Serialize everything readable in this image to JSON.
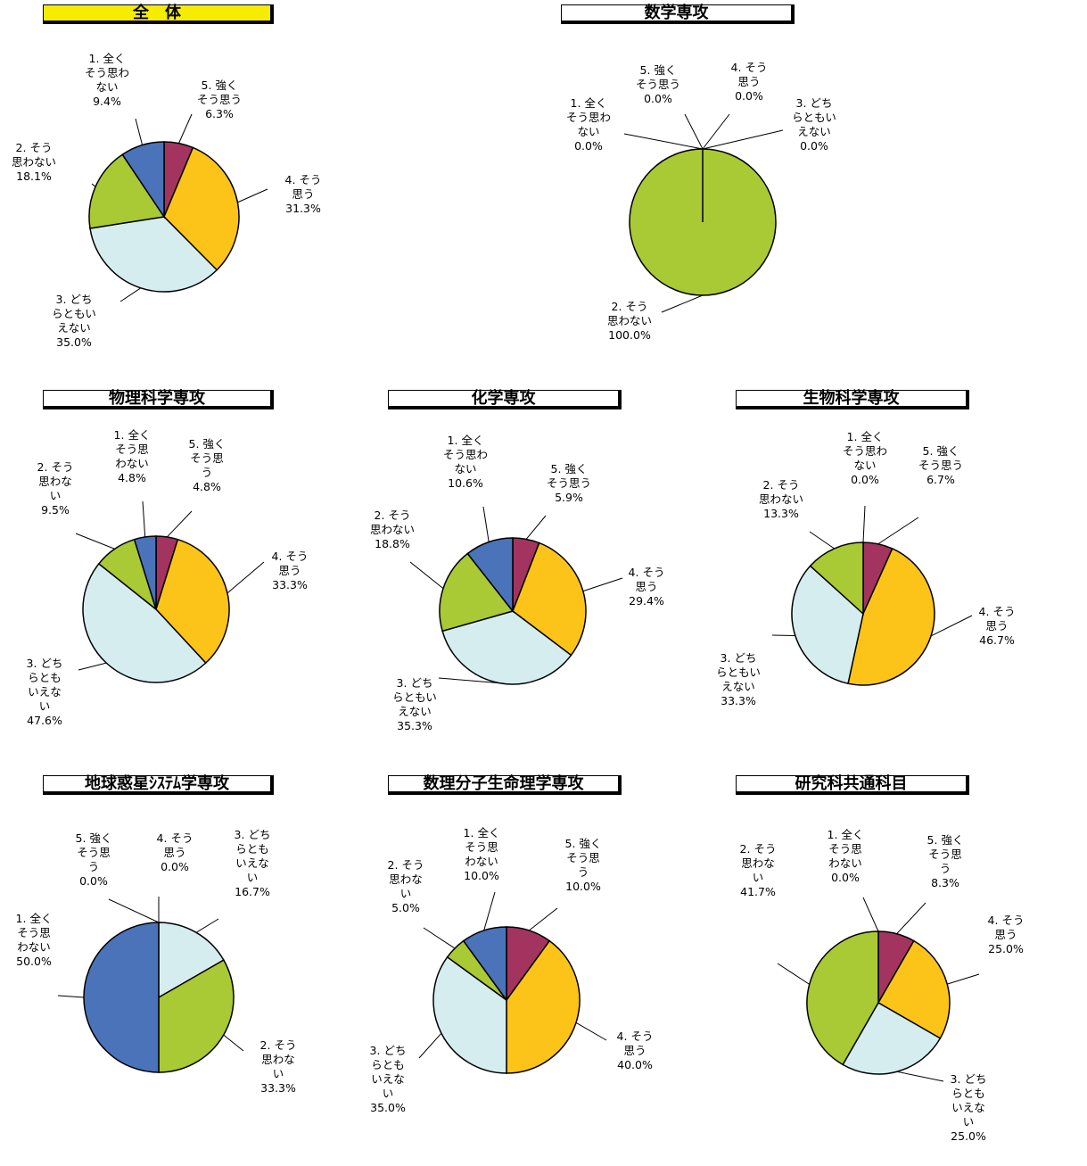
{
  "colors": {
    "strongly_agree": "#a3335f",
    "agree": "#fcc419",
    "neutral": "#d6edf0",
    "disagree": "#a9c935",
    "strongly_disagree": "#4a73b9"
  },
  "chart_data": [
    {
      "type": "pie",
      "title": "全　体",
      "slices": [
        {
          "key": "strongly_agree",
          "label": "5. 強く\nそう思う",
          "value": 6.3,
          "pct": "6.3%"
        },
        {
          "key": "agree",
          "label": "4. そう\n思う",
          "value": 31.3,
          "pct": "31.3%"
        },
        {
          "key": "neutral",
          "label": "3. どち\nらともい\nえない",
          "value": 35.0,
          "pct": "35.0%"
        },
        {
          "key": "disagree",
          "label": "2. そう\n思わない",
          "value": 18.1,
          "pct": "18.1%"
        },
        {
          "key": "strongly_disagree",
          "label": "1. 全く\nそう思わ\nない",
          "value": 9.4,
          "pct": "9.4%"
        }
      ]
    },
    {
      "type": "pie",
      "title": "数学専攻",
      "slices": [
        {
          "key": "strongly_agree",
          "label": "5. 強く\nそう思う",
          "value": 0,
          "pct": "0.0%"
        },
        {
          "key": "agree",
          "label": "4. そう\n思う",
          "value": 0,
          "pct": "0.0%"
        },
        {
          "key": "neutral",
          "label": "3. どち\nらともい\nえない",
          "value": 0,
          "pct": "0.0%"
        },
        {
          "key": "disagree",
          "label": "2. そう\n思わない",
          "value": 100.0,
          "pct": "100.0%"
        },
        {
          "key": "strongly_disagree",
          "label": "1. 全く\nそう思わ\nない",
          "value": 0,
          "pct": "0.0%"
        }
      ]
    },
    {
      "type": "pie",
      "title": "物理科学専攻",
      "slices": [
        {
          "key": "strongly_agree",
          "label": "5. 強く\nそう思\nう",
          "value": 4.8,
          "pct": "4.8%"
        },
        {
          "key": "agree",
          "label": "4. そう\n思う",
          "value": 33.3,
          "pct": "33.3%"
        },
        {
          "key": "neutral",
          "label": "3. どち\nらとも\nいえな\nい",
          "value": 47.6,
          "pct": "47.6%"
        },
        {
          "key": "disagree",
          "label": "2. そう\n思わな\nい",
          "value": 9.5,
          "pct": "9.5%"
        },
        {
          "key": "strongly_disagree",
          "label": "1. 全く\nそう思\nわない",
          "value": 4.8,
          "pct": "4.8%"
        }
      ]
    },
    {
      "type": "pie",
      "title": "化学専攻",
      "slices": [
        {
          "key": "strongly_agree",
          "label": "5. 強く\nそう思う",
          "value": 5.9,
          "pct": "5.9%"
        },
        {
          "key": "agree",
          "label": "4. そう\n思う",
          "value": 29.4,
          "pct": "29.4%"
        },
        {
          "key": "neutral",
          "label": "3. どち\nらともい\nえない",
          "value": 35.3,
          "pct": "35.3%"
        },
        {
          "key": "disagree",
          "label": "2. そう\n思わない",
          "value": 18.8,
          "pct": "18.8%"
        },
        {
          "key": "strongly_disagree",
          "label": "1. 全く\nそう思わ\nない",
          "value": 10.6,
          "pct": "10.6%"
        }
      ]
    },
    {
      "type": "pie",
      "title": "生物科学専攻",
      "slices": [
        {
          "key": "strongly_agree",
          "label": "5. 強く\nそう思う",
          "value": 6.7,
          "pct": "6.7%"
        },
        {
          "key": "agree",
          "label": "4. そう\n思う",
          "value": 46.7,
          "pct": "46.7%"
        },
        {
          "key": "neutral",
          "label": "3. どち\nらともい\nえない",
          "value": 33.3,
          "pct": "33.3%"
        },
        {
          "key": "disagree",
          "label": "2. そう\n思わない",
          "value": 13.3,
          "pct": "13.3%"
        },
        {
          "key": "strongly_disagree",
          "label": "1. 全く\nそう思わ\nない",
          "value": 0,
          "pct": "0.0%"
        }
      ]
    },
    {
      "type": "pie",
      "title": "地球惑星ｼｽﾃﾑ学専攻",
      "slices": [
        {
          "key": "strongly_agree",
          "label": "5. 強く\nそう思\nう",
          "value": 0,
          "pct": "0.0%"
        },
        {
          "key": "agree",
          "label": "4. そう\n思う",
          "value": 0,
          "pct": "0.0%"
        },
        {
          "key": "neutral",
          "label": "3. どち\nらとも\nいえな\nい",
          "value": 16.7,
          "pct": "16.7%"
        },
        {
          "key": "disagree",
          "label": "2. そう\n思わな\nい",
          "value": 33.3,
          "pct": "33.3%"
        },
        {
          "key": "strongly_disagree",
          "label": "1. 全く\nそう思\nわない",
          "value": 50.0,
          "pct": "50.0%"
        }
      ]
    },
    {
      "type": "pie",
      "title": "数理分子生命理学専攻",
      "slices": [
        {
          "key": "strongly_agree",
          "label": "5. 強く\nそう思\nう",
          "value": 10.0,
          "pct": "10.0%"
        },
        {
          "key": "agree",
          "label": "4. そう\n思う",
          "value": 40.0,
          "pct": "40.0%"
        },
        {
          "key": "neutral",
          "label": "3. どち\nらとも\nいえな\nい",
          "value": 35.0,
          "pct": "35.0%"
        },
        {
          "key": "disagree",
          "label": "2. そう\n思わな\nい",
          "value": 5.0,
          "pct": "5.0%"
        },
        {
          "key": "strongly_disagree",
          "label": "1. 全く\nそう思\nわない",
          "value": 10.0,
          "pct": "10.0%"
        }
      ]
    },
    {
      "type": "pie",
      "title": "研究科共通科目",
      "slices": [
        {
          "key": "strongly_agree",
          "label": "5. 強く\nそう思\nう",
          "value": 8.3,
          "pct": "8.3%"
        },
        {
          "key": "agree",
          "label": "4. そう\n思う",
          "value": 25.0,
          "pct": "25.0%"
        },
        {
          "key": "neutral",
          "label": "3. どち\nらとも\nいえな\nい",
          "value": 25.0,
          "pct": "25.0%"
        },
        {
          "key": "disagree",
          "label": "2. そう\n思わな\nい",
          "value": 41.7,
          "pct": "41.7%"
        },
        {
          "key": "strongly_disagree",
          "label": "1. 全く\nそう思\nわない",
          "value": 0,
          "pct": "0.0%"
        }
      ]
    }
  ]
}
